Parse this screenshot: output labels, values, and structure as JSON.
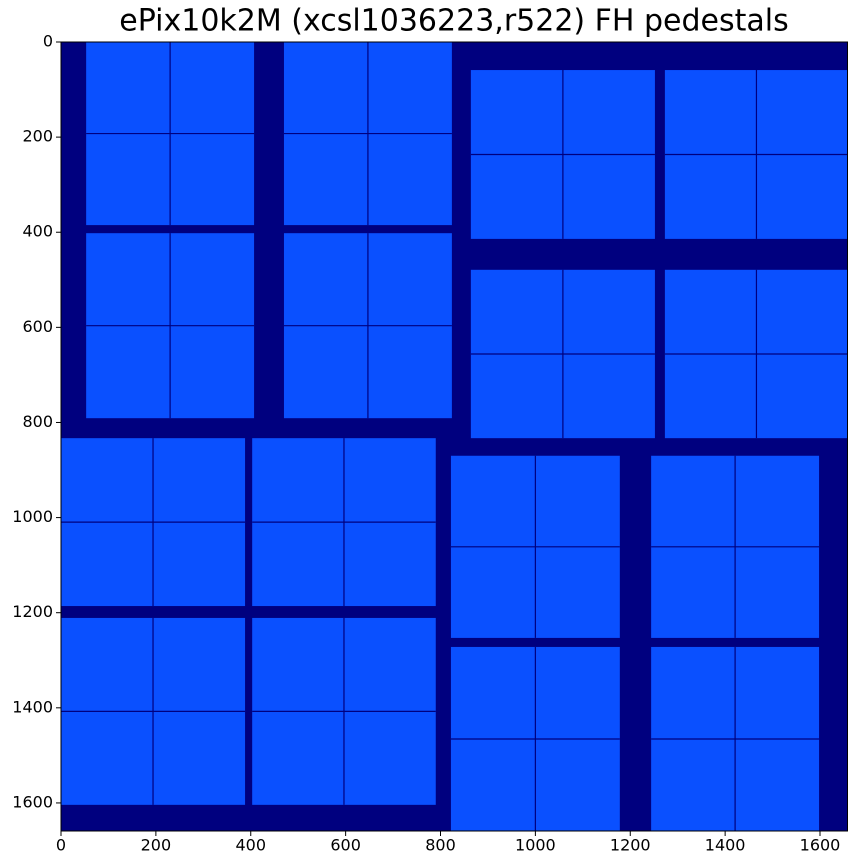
{
  "chart_data": {
    "type": "image",
    "title": "ePix10k2M (xcsl1036223,r522) FH pedestals",
    "xlim": [
      0,
      1659
    ],
    "ylim": [
      1659,
      0
    ],
    "xticks": [
      0,
      200,
      400,
      600,
      800,
      1000,
      1200,
      1400,
      1600
    ],
    "yticks": [
      0,
      200,
      400,
      600,
      800,
      1000,
      1200,
      1400,
      1600
    ],
    "background_color": "#00007f",
    "panel_color": "#0a50ff",
    "panels": [
      [
        53,
        407,
        0,
        385
      ],
      [
        470,
        824,
        0,
        385
      ],
      [
        53,
        407,
        402,
        791
      ],
      [
        470,
        824,
        402,
        791
      ],
      [
        864,
        1252,
        59,
        414
      ],
      [
        1273,
        1659,
        59,
        414
      ],
      [
        864,
        1252,
        479,
        833
      ],
      [
        1273,
        1659,
        479,
        833
      ],
      [
        0,
        388,
        833,
        1186
      ],
      [
        403,
        790,
        833,
        1186
      ],
      [
        0,
        388,
        1211,
        1604
      ],
      [
        403,
        790,
        1211,
        1604
      ],
      [
        822,
        1178,
        870,
        1253
      ],
      [
        1244,
        1598,
        870,
        1253
      ],
      [
        822,
        1178,
        1272,
        1659
      ],
      [
        1244,
        1598,
        1272,
        1659
      ]
    ]
  }
}
